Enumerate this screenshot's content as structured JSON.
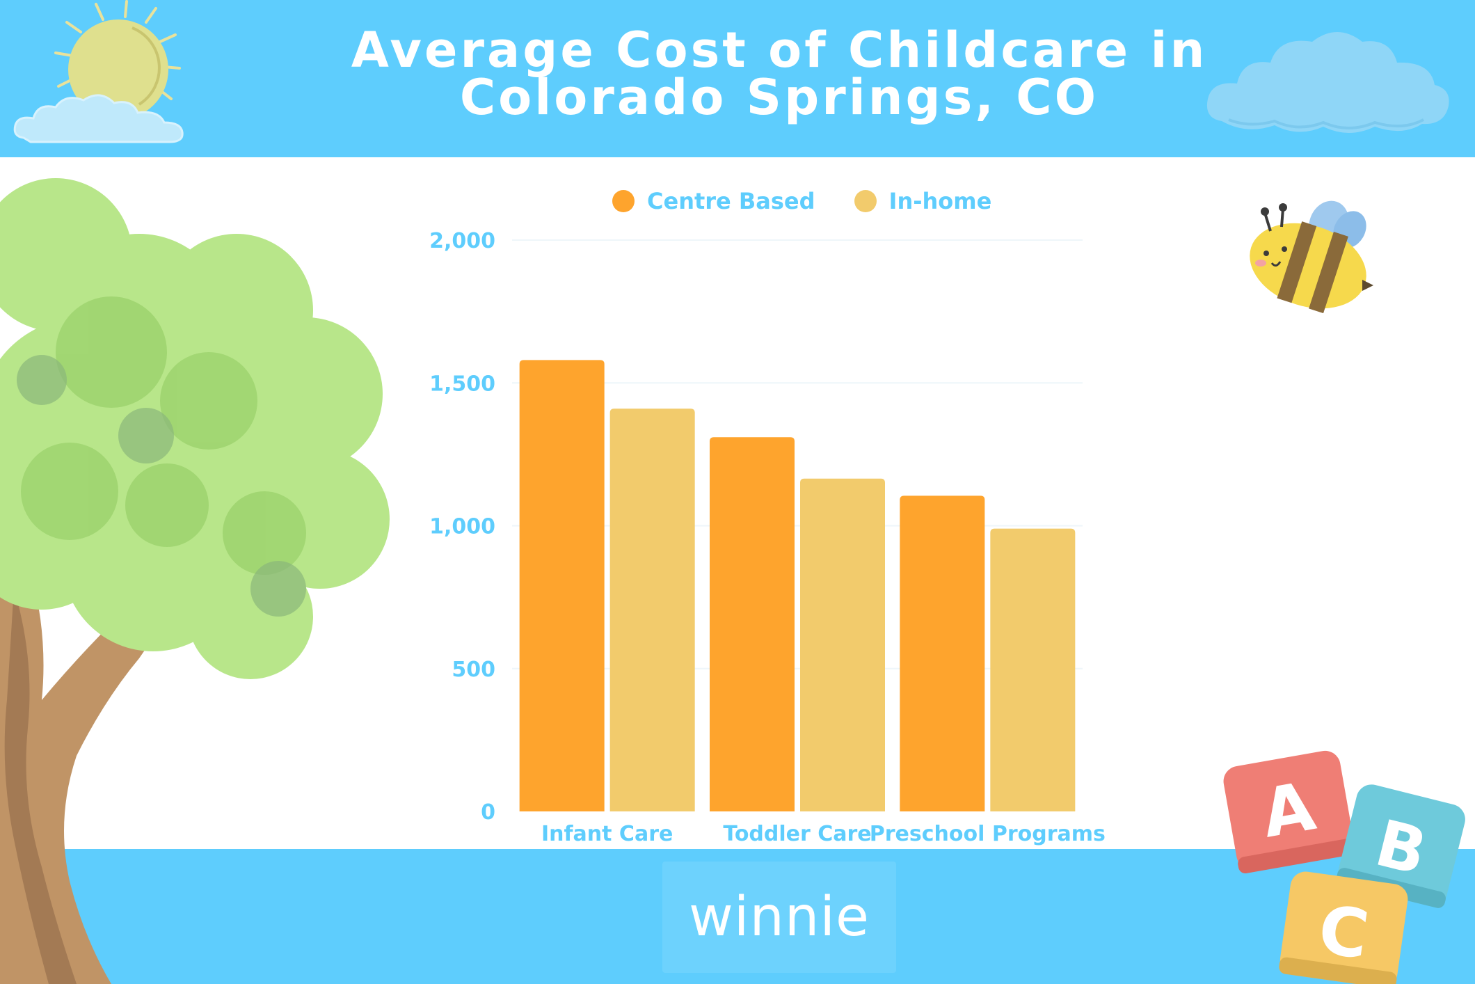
{
  "page": {
    "title_lines": [
      "Average Cost of Childcare in",
      "Colorado Springs, CO"
    ],
    "brand": "winnie",
    "colors": {
      "band": "#5ecdfd",
      "centre_based": "#fea42d",
      "in_home": "#f2cb6c",
      "axis_text": "#5ecdfd"
    },
    "decorations": [
      "sun-icon",
      "cloud-icon",
      "tree-illustration",
      "bee-icon",
      "abc-blocks-icon"
    ],
    "blocks": [
      "A",
      "B",
      "C"
    ]
  },
  "chart_data": {
    "type": "bar",
    "title": "Average Cost of Childcare in Colorado Springs, CO",
    "xlabel": "",
    "ylabel": "",
    "categories": [
      "Infant Care",
      "Toddler Care",
      "Preschool Programs"
    ],
    "series": [
      {
        "name": "Centre Based",
        "values": [
          1580,
          1310,
          1105
        ],
        "color": "#fea42d"
      },
      {
        "name": "In-home",
        "values": [
          1410,
          1165,
          990
        ],
        "color": "#f2cb6c"
      }
    ],
    "ylim": [
      0,
      2000
    ],
    "yticks": [
      0,
      500,
      1000,
      1500,
      2000
    ],
    "ytick_labels": [
      "0",
      "500",
      "1,000",
      "1,500",
      "2,000"
    ],
    "grid": true,
    "legend": "top-center"
  }
}
